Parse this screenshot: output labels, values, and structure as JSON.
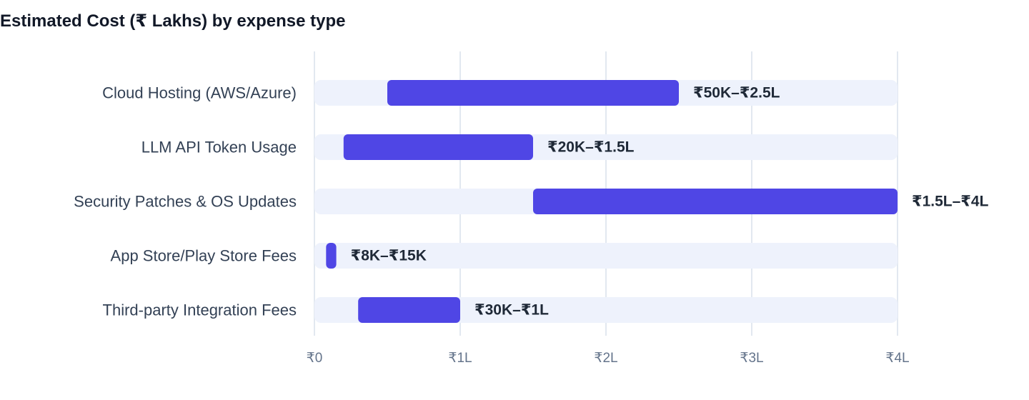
{
  "chart_data": {
    "type": "bar",
    "orientation": "horizontal",
    "subtype": "range",
    "title": "Estimated Cost (₹ Lakhs) by expense type",
    "xlabel": "",
    "ylabel": "",
    "xlim": [
      0,
      4
    ],
    "x_ticks": [
      0,
      1,
      2,
      3,
      4
    ],
    "x_tick_labels": [
      "₹0",
      "₹1L",
      "₹2L",
      "₹3L",
      "₹4L"
    ],
    "grid": "vertical",
    "legend": "none",
    "bar_color": "#4f46e5",
    "track_color": "#eef2fc",
    "grid_color": "#e2e8f0",
    "categories": [
      "Cloud Hosting (AWS/Azure)",
      "LLM API Token Usage",
      "Security Patches & OS Updates",
      "App Store/Play Store Fees",
      "Third-party Integration Fees"
    ],
    "ranges": [
      [
        0.5,
        2.5
      ],
      [
        0.2,
        1.5
      ],
      [
        1.5,
        4.0
      ],
      [
        0.08,
        0.15
      ],
      [
        0.3,
        1.0
      ]
    ],
    "value_labels": [
      "₹50K–₹2.5L",
      "₹20K–₹1.5L",
      "₹1.5L–₹4L",
      "₹8K–₹15K",
      "₹30K–₹1L"
    ]
  }
}
